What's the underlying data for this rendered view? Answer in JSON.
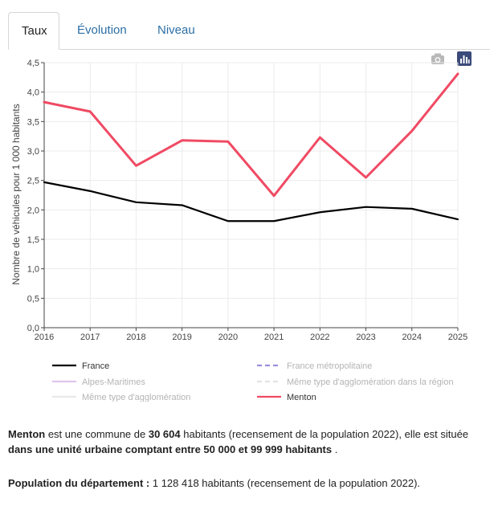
{
  "tabs": [
    {
      "label": "Taux",
      "active": true
    },
    {
      "label": "Évolution",
      "active": false
    },
    {
      "label": "Niveau",
      "active": false
    }
  ],
  "modebar": {
    "camera": {
      "icon": "camera-icon"
    },
    "logo": {
      "icon": "chart-logo-icon"
    }
  },
  "chart_data": {
    "type": "line",
    "title": "",
    "xlabel": "",
    "ylabel": "Nombre de véhicules pour 1 000 habitants",
    "x": [
      2016,
      2017,
      2018,
      2019,
      2020,
      2021,
      2022,
      2023,
      2024,
      2025
    ],
    "x_tick_labels": [
      "2016",
      "2017",
      "2018",
      "2019",
      "2020",
      "2021",
      "2022",
      "2023",
      "2024",
      "2025"
    ],
    "ylim": [
      0,
      4.5
    ],
    "y_ticks": [
      0,
      0.5,
      1,
      1.5,
      2,
      2.5,
      3,
      3.5,
      4,
      4.5
    ],
    "y_tick_labels": [
      "0,0",
      "0,5",
      "1,0",
      "1,5",
      "2,0",
      "2,5",
      "3,0",
      "3,5",
      "4,0",
      "4,5"
    ],
    "grid": true,
    "series": [
      {
        "name": "France",
        "color": "#000000",
        "visible": true,
        "values": [
          2.47,
          2.32,
          2.13,
          2.08,
          1.81,
          1.81,
          1.96,
          2.05,
          2.02,
          1.84
        ]
      },
      {
        "name": "Menton",
        "color": "#f04a63",
        "visible": true,
        "values": [
          3.83,
          3.67,
          2.75,
          3.18,
          3.16,
          2.24,
          3.23,
          2.55,
          3.34,
          4.31
        ]
      }
    ],
    "legend": [
      {
        "name": "France",
        "color": "#000000",
        "style": "solid",
        "active": true
      },
      {
        "name": "France métropolitaine",
        "color": "#9e8ed8",
        "style": "dashed",
        "active": false
      },
      {
        "name": "Alpes-Maritimes",
        "color": "#e0c4ec",
        "style": "solid",
        "active": false
      },
      {
        "name": "Même type d'agglomération dans la région",
        "color": "#e2e2e2",
        "style": "dashed",
        "active": false
      },
      {
        "name": "Même type d'agglomération",
        "color": "#e8e8e8",
        "style": "solid",
        "active": false
      },
      {
        "name": "Menton",
        "color": "#f04a63",
        "style": "solid",
        "active": true
      }
    ]
  },
  "description": {
    "p1": {
      "commune": "Menton",
      "t1": " est une commune de ",
      "habitants": "30 604",
      "t2": " habitants (recensement de la population 2022), elle est située ",
      "unite": "dans une unité urbaine comptant entre 50 000 et 99 999 habitants",
      "t3": " ."
    },
    "p2": {
      "label": "Population du département :",
      "value": " 1 128 418 habitants (recensement de la population 2022)."
    }
  }
}
